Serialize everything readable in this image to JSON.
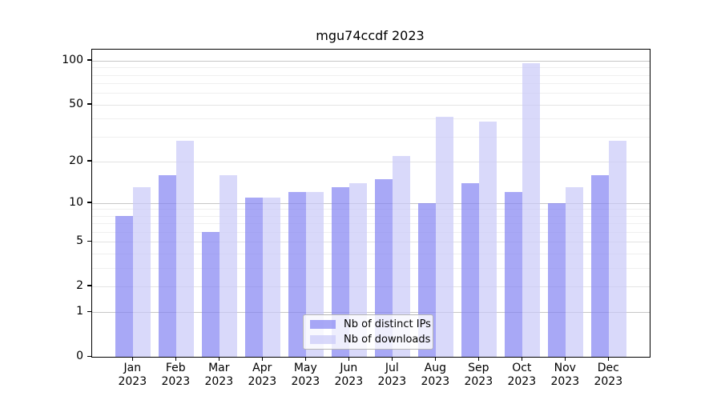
{
  "chart_data": {
    "type": "bar",
    "title": "mgu74ccdf 2023",
    "year_label": "2023",
    "categories": [
      "Jan",
      "Feb",
      "Mar",
      "Apr",
      "May",
      "Jun",
      "Jul",
      "Aug",
      "Sep",
      "Oct",
      "Nov",
      "Dec"
    ],
    "series": [
      {
        "name": "Nb of distinct IPs",
        "values": [
          8,
          16,
          6,
          11,
          12,
          13,
          15,
          10,
          14,
          12,
          10,
          16
        ]
      },
      {
        "name": "Nb of downloads",
        "values": [
          13,
          28,
          16,
          11,
          12,
          14,
          22,
          41,
          38,
          96,
          13,
          28
        ]
      }
    ],
    "yticks": [
      100,
      50,
      20,
      10,
      5,
      2,
      1,
      0
    ],
    "minor_gridlines": [
      3,
      4,
      6,
      7,
      8,
      9,
      30,
      40,
      60,
      70,
      80,
      90
    ],
    "ylim": [
      0,
      119
    ],
    "yscale": "log1p",
    "grid": true,
    "legend_position": "lower center",
    "colors": {
      "distinct_ips": "#8383f2",
      "downloads": "#c9c9f8",
      "bar_alpha": 0.7,
      "grid_major": "#c6c6c6",
      "grid_medium": "#e3e3e3",
      "grid_minor": "#efefef"
    }
  }
}
